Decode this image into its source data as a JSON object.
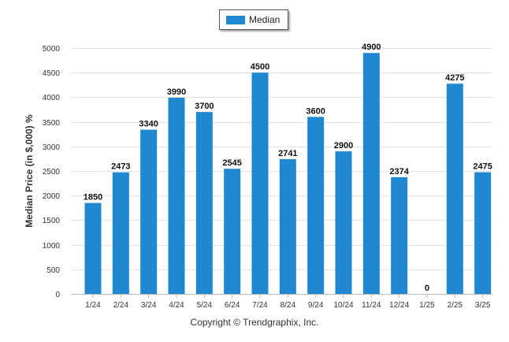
{
  "legend": {
    "label": "Median",
    "color": "#1f88d0"
  },
  "footer": {
    "copyright": "Copyright © Trendgraphix, Inc."
  },
  "chart_data": {
    "type": "bar",
    "title": "",
    "xlabel": "",
    "ylabel": "Median Price (in $,000) %",
    "categories": [
      "1/24",
      "2/24",
      "3/24",
      "4/24",
      "5/24",
      "6/24",
      "7/24",
      "8/24",
      "9/24",
      "10/24",
      "11/24",
      "12/24",
      "1/25",
      "2/25",
      "3/25"
    ],
    "series": [
      {
        "name": "Median",
        "values": [
          1850,
          2473,
          3340,
          3990,
          3700,
          2545,
          4500,
          2741,
          3600,
          2900,
          4900,
          2374,
          0,
          4275,
          2475
        ]
      }
    ],
    "ylim": [
      0,
      5000
    ],
    "yticks": [
      0,
      500,
      1000,
      1500,
      2000,
      2500,
      3000,
      3500,
      4000,
      4500,
      5000
    ],
    "grid": true,
    "legend_position": "top-center",
    "bar_color": "#1f88d0"
  }
}
